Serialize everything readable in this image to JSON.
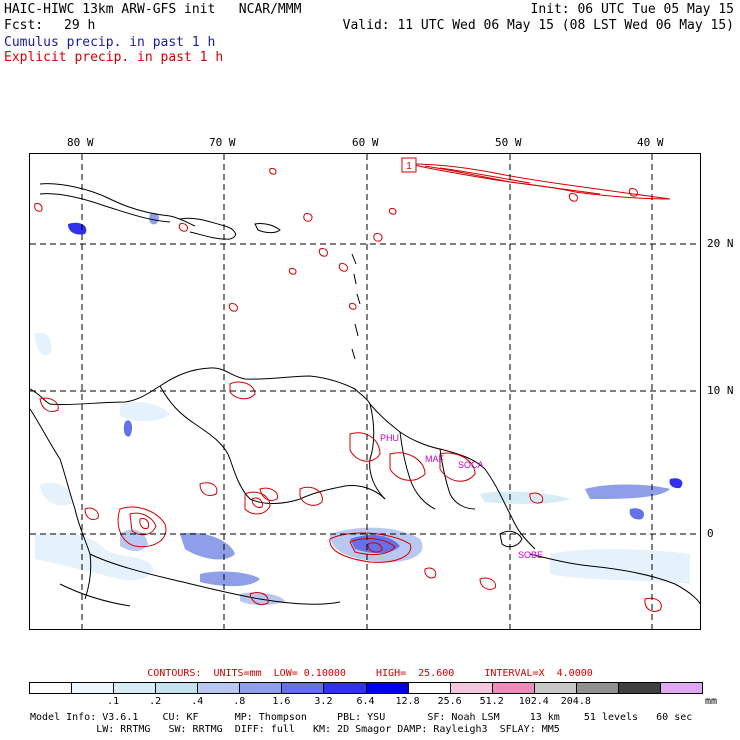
{
  "header": {
    "title": "HAIC-HIWC 13km ARW-GFS init   NCAR/MMM",
    "init": "Init: 06 UTC Tue 05 May 15",
    "fcst_label": "Fcst:",
    "fcst_value": "29 h",
    "valid": "Valid: 11 UTC Wed 06 May 15 (08 LST Wed 06 May 15)",
    "legend_cumulus": "Cumulus precip. in past 1 h",
    "legend_explicit": "Explicit precip. in past 1 h"
  },
  "colors": {
    "cumulus": "#3040c0",
    "explicit": "#d40000",
    "coast": "#000000",
    "grid": "#000000"
  },
  "map": {
    "lon_labels": [
      "80 W",
      "70 W",
      "60 W",
      "50 W",
      "40 W"
    ],
    "lat_labels": [
      "20 N",
      "10 N",
      "0"
    ],
    "max_marker": "1",
    "place_labels": [
      "PHU",
      "MAF",
      "SOCA",
      "SOBE"
    ]
  },
  "contours_line": "CONTOURS:  UNITS=mm  LOW= 0.10000     HIGH=  25.600     INTERVAL=X  4.0000",
  "colorbar": {
    "unit": "mm",
    "colors": [
      "#ffffff",
      "#eef6fb",
      "#d6ecf6",
      "#c2e3ee",
      "#b8c8f0",
      "#8f9ee8",
      "#6670e8",
      "#3232ee",
      "#0000ee",
      "#ffffff",
      "#f4c8dc",
      "#f08cbc",
      "#c8c8c8",
      "#909090",
      "#404040",
      "#e0a8f4"
    ],
    "labels": [
      ".1",
      ".2",
      ".4",
      ".8",
      "1.6",
      "3.2",
      "6.4",
      "12.8",
      "25.6",
      "51.2",
      "102.4",
      "204.8"
    ]
  },
  "footer": {
    "line1": "Model Info: V3.6.1    CU: KF      MP: Thompson     PBL: YSU       SF: Noah LSM     13 km    51 levels   60 sec",
    "line2": "           LW: RRTMG   SW: RRTMG  DIFF: full   KM: 2D Smagor DAMP: Rayleigh3  SFLAY: MM5"
  }
}
